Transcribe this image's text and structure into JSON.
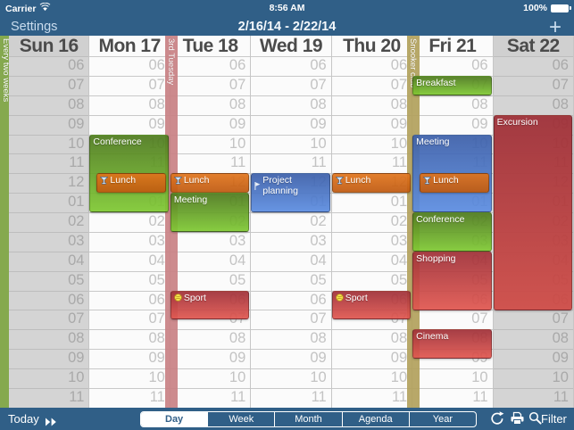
{
  "status_bar": {
    "carrier": "Carrier",
    "time": "8:56 AM",
    "battery": "100%"
  },
  "nav_bar": {
    "settings": "Settings",
    "date_range": "2/16/14 - 2/22/14",
    "add": "+"
  },
  "calendar": {
    "time_labels": [
      "06",
      "07",
      "08",
      "09",
      "10",
      "11",
      "12",
      "01",
      "02",
      "03",
      "04",
      "05",
      "06",
      "07",
      "08",
      "09",
      "10",
      "11"
    ],
    "left_banner": {
      "title": "Every two weeks",
      "color": "#85a94e"
    },
    "days": [
      {
        "label": "Sun 16",
        "weekend": true
      },
      {
        "label": "Mon 17",
        "weekend": false
      },
      {
        "label": "Tue 18",
        "weekend": false,
        "banner": {
          "title": "3rd Tuesday",
          "color": "#c98184"
        }
      },
      {
        "label": "Wed 19",
        "weekend": false
      },
      {
        "label": "Thu 20",
        "weekend": false
      },
      {
        "label": "Fri 21",
        "weekend": false,
        "banner": {
          "title": "Snooker club",
          "color": "#b2a15c"
        }
      },
      {
        "label": "Sat 22",
        "weekend": true
      }
    ],
    "events": [
      {
        "day": 1,
        "title": "Conference",
        "start": 10,
        "end": 14,
        "color": "green"
      },
      {
        "day": 1,
        "title": "Lunch",
        "start": 12,
        "end": 13,
        "color": "orange",
        "icon": "martini-icon",
        "inset": true
      },
      {
        "day": 2,
        "title": "Lunch",
        "start": 12,
        "end": 13,
        "color": "orange",
        "icon": "martini-icon"
      },
      {
        "day": 2,
        "title": "Meeting",
        "start": 13,
        "end": 15,
        "color": "green"
      },
      {
        "day": 2,
        "title": "Sport",
        "start": 18,
        "end": 19.5,
        "color": "red",
        "icon": "tennis-ball-icon"
      },
      {
        "day": 3,
        "title": "Project planning",
        "start": 12,
        "end": 14,
        "color": "blue",
        "icon": "flag-icon"
      },
      {
        "day": 4,
        "title": "Lunch",
        "start": 12,
        "end": 13,
        "color": "orange",
        "icon": "martini-icon"
      },
      {
        "day": 4,
        "title": "Sport",
        "start": 18,
        "end": 19.5,
        "color": "red",
        "icon": "tennis-ball-icon"
      },
      {
        "day": 5,
        "title": "Breakfast",
        "start": 7,
        "end": 8,
        "color": "green"
      },
      {
        "day": 5,
        "title": "Meeting",
        "start": 10,
        "end": 14,
        "color": "blue"
      },
      {
        "day": 5,
        "title": "Lunch",
        "start": 12,
        "end": 13,
        "color": "orange",
        "icon": "martini-icon",
        "inset": true
      },
      {
        "day": 5,
        "title": "Conference",
        "start": 14,
        "end": 16,
        "color": "green"
      },
      {
        "day": 5,
        "title": "Shopping",
        "start": 16,
        "end": 19,
        "color": "red"
      },
      {
        "day": 5,
        "title": "Cinema",
        "start": 20,
        "end": 21.5,
        "color": "red"
      },
      {
        "day": 6,
        "title": "Excursion",
        "start": 9,
        "end": 19,
        "color": "darkred"
      }
    ],
    "palette": {
      "green": [
        "#4e7a1e",
        "#7ec832"
      ],
      "orange": [
        "#e0741c",
        "#c05a10"
      ],
      "blue": [
        "#3c5fa9",
        "#5b8ce0"
      ],
      "red": [
        "#a03038",
        "#e0564f"
      ],
      "darkred": [
        "#9e2e36",
        "#cf4a45"
      ]
    },
    "weekend_bg": "#d4d4d4",
    "weekday_bg": "#fbfbfb"
  },
  "toolbar": {
    "today": "Today",
    "views": [
      "Day",
      "Week",
      "Month",
      "Agenda",
      "Year"
    ],
    "selected_view": "Day",
    "filter": "Filter"
  },
  "chrome_color": "#305f87"
}
